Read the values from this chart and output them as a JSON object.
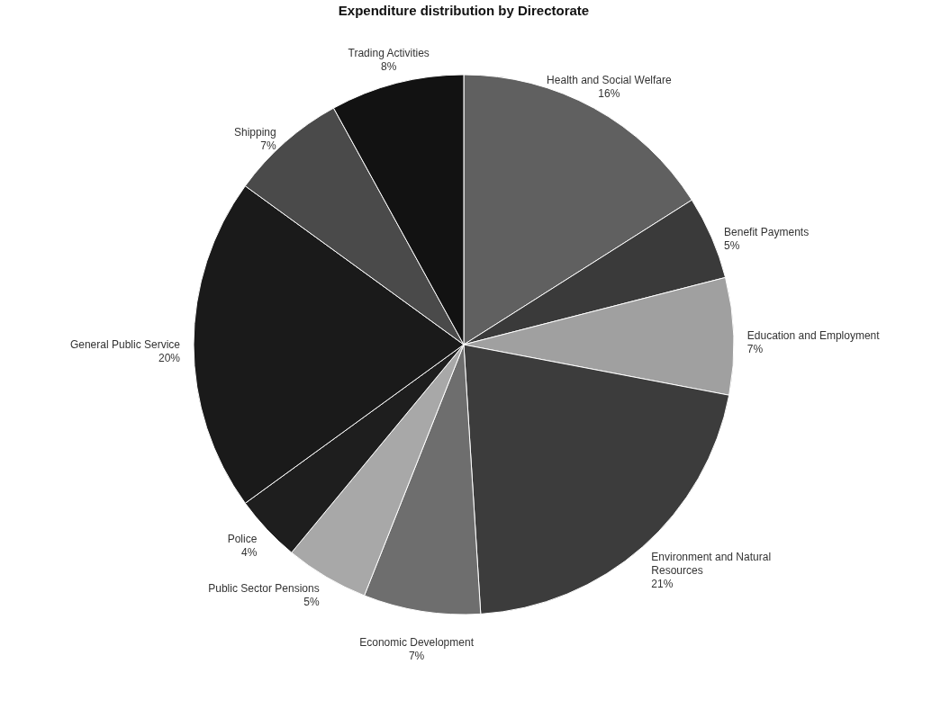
{
  "chart_data": {
    "type": "pie",
    "title": "Expenditure distribution by Directorate",
    "categories": [
      "Health and Social Welfare",
      "Benefit Payments",
      "Education and Employment",
      "Environment and Natural Resources",
      "Economic Development",
      "Public Sector Pensions",
      "Police",
      "General Public Service",
      "Shipping",
      "Trading Activities"
    ],
    "values": [
      16,
      5,
      7,
      21,
      7,
      5,
      4,
      20,
      7,
      8
    ],
    "value_labels": [
      "16%",
      "5%",
      "7%",
      "21%",
      "7%",
      "5%",
      "4%",
      "20%",
      "7%",
      "8%"
    ],
    "colors": [
      "#606060",
      "#3a3a3a",
      "#a0a0a0",
      "#3c3c3c",
      "#6e6e6e",
      "#a8a8a8",
      "#1e1e1e",
      "#1a1a1a",
      "#4a4a4a",
      "#121212"
    ],
    "legend": false
  }
}
